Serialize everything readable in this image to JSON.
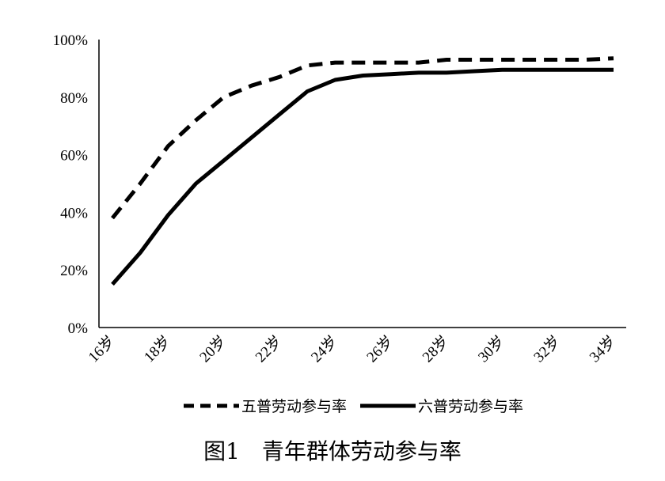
{
  "chart_data": {
    "type": "line",
    "title": "",
    "xlabel": "",
    "ylabel": "",
    "categories": [
      "16岁",
      "17岁",
      "18岁",
      "19岁",
      "20岁",
      "21岁",
      "22岁",
      "23岁",
      "24岁",
      "25岁",
      "26岁",
      "27岁",
      "28岁",
      "29岁",
      "30岁",
      "31岁",
      "32岁",
      "33岁",
      "34岁"
    ],
    "x_tick_labels": [
      "16岁",
      "18岁",
      "20岁",
      "22岁",
      "24岁",
      "26岁",
      "28岁",
      "30岁",
      "32岁",
      "34岁"
    ],
    "y_tick_labels": [
      "0%",
      "20%",
      "40%",
      "60%",
      "80%",
      "100%"
    ],
    "ylim": [
      0,
      100
    ],
    "grid": false,
    "legend_position": "bottom",
    "series": [
      {
        "name": "五普劳动参与率",
        "style": "dashed",
        "color": "#000000",
        "values": [
          38,
          50,
          63,
          72,
          80,
          84,
          87,
          91,
          92,
          92,
          92,
          92,
          93,
          93,
          93,
          93,
          93,
          93,
          93.5
        ]
      },
      {
        "name": "六普劳动参与率",
        "style": "solid",
        "color": "#000000",
        "values": [
          15,
          26,
          39,
          50,
          58,
          66,
          74,
          82,
          86,
          87.5,
          88,
          88.5,
          88.5,
          89,
          89.5,
          89.5,
          89.5,
          89.5,
          89.5
        ]
      }
    ],
    "caption": "图1　青年群体劳动参与率"
  }
}
